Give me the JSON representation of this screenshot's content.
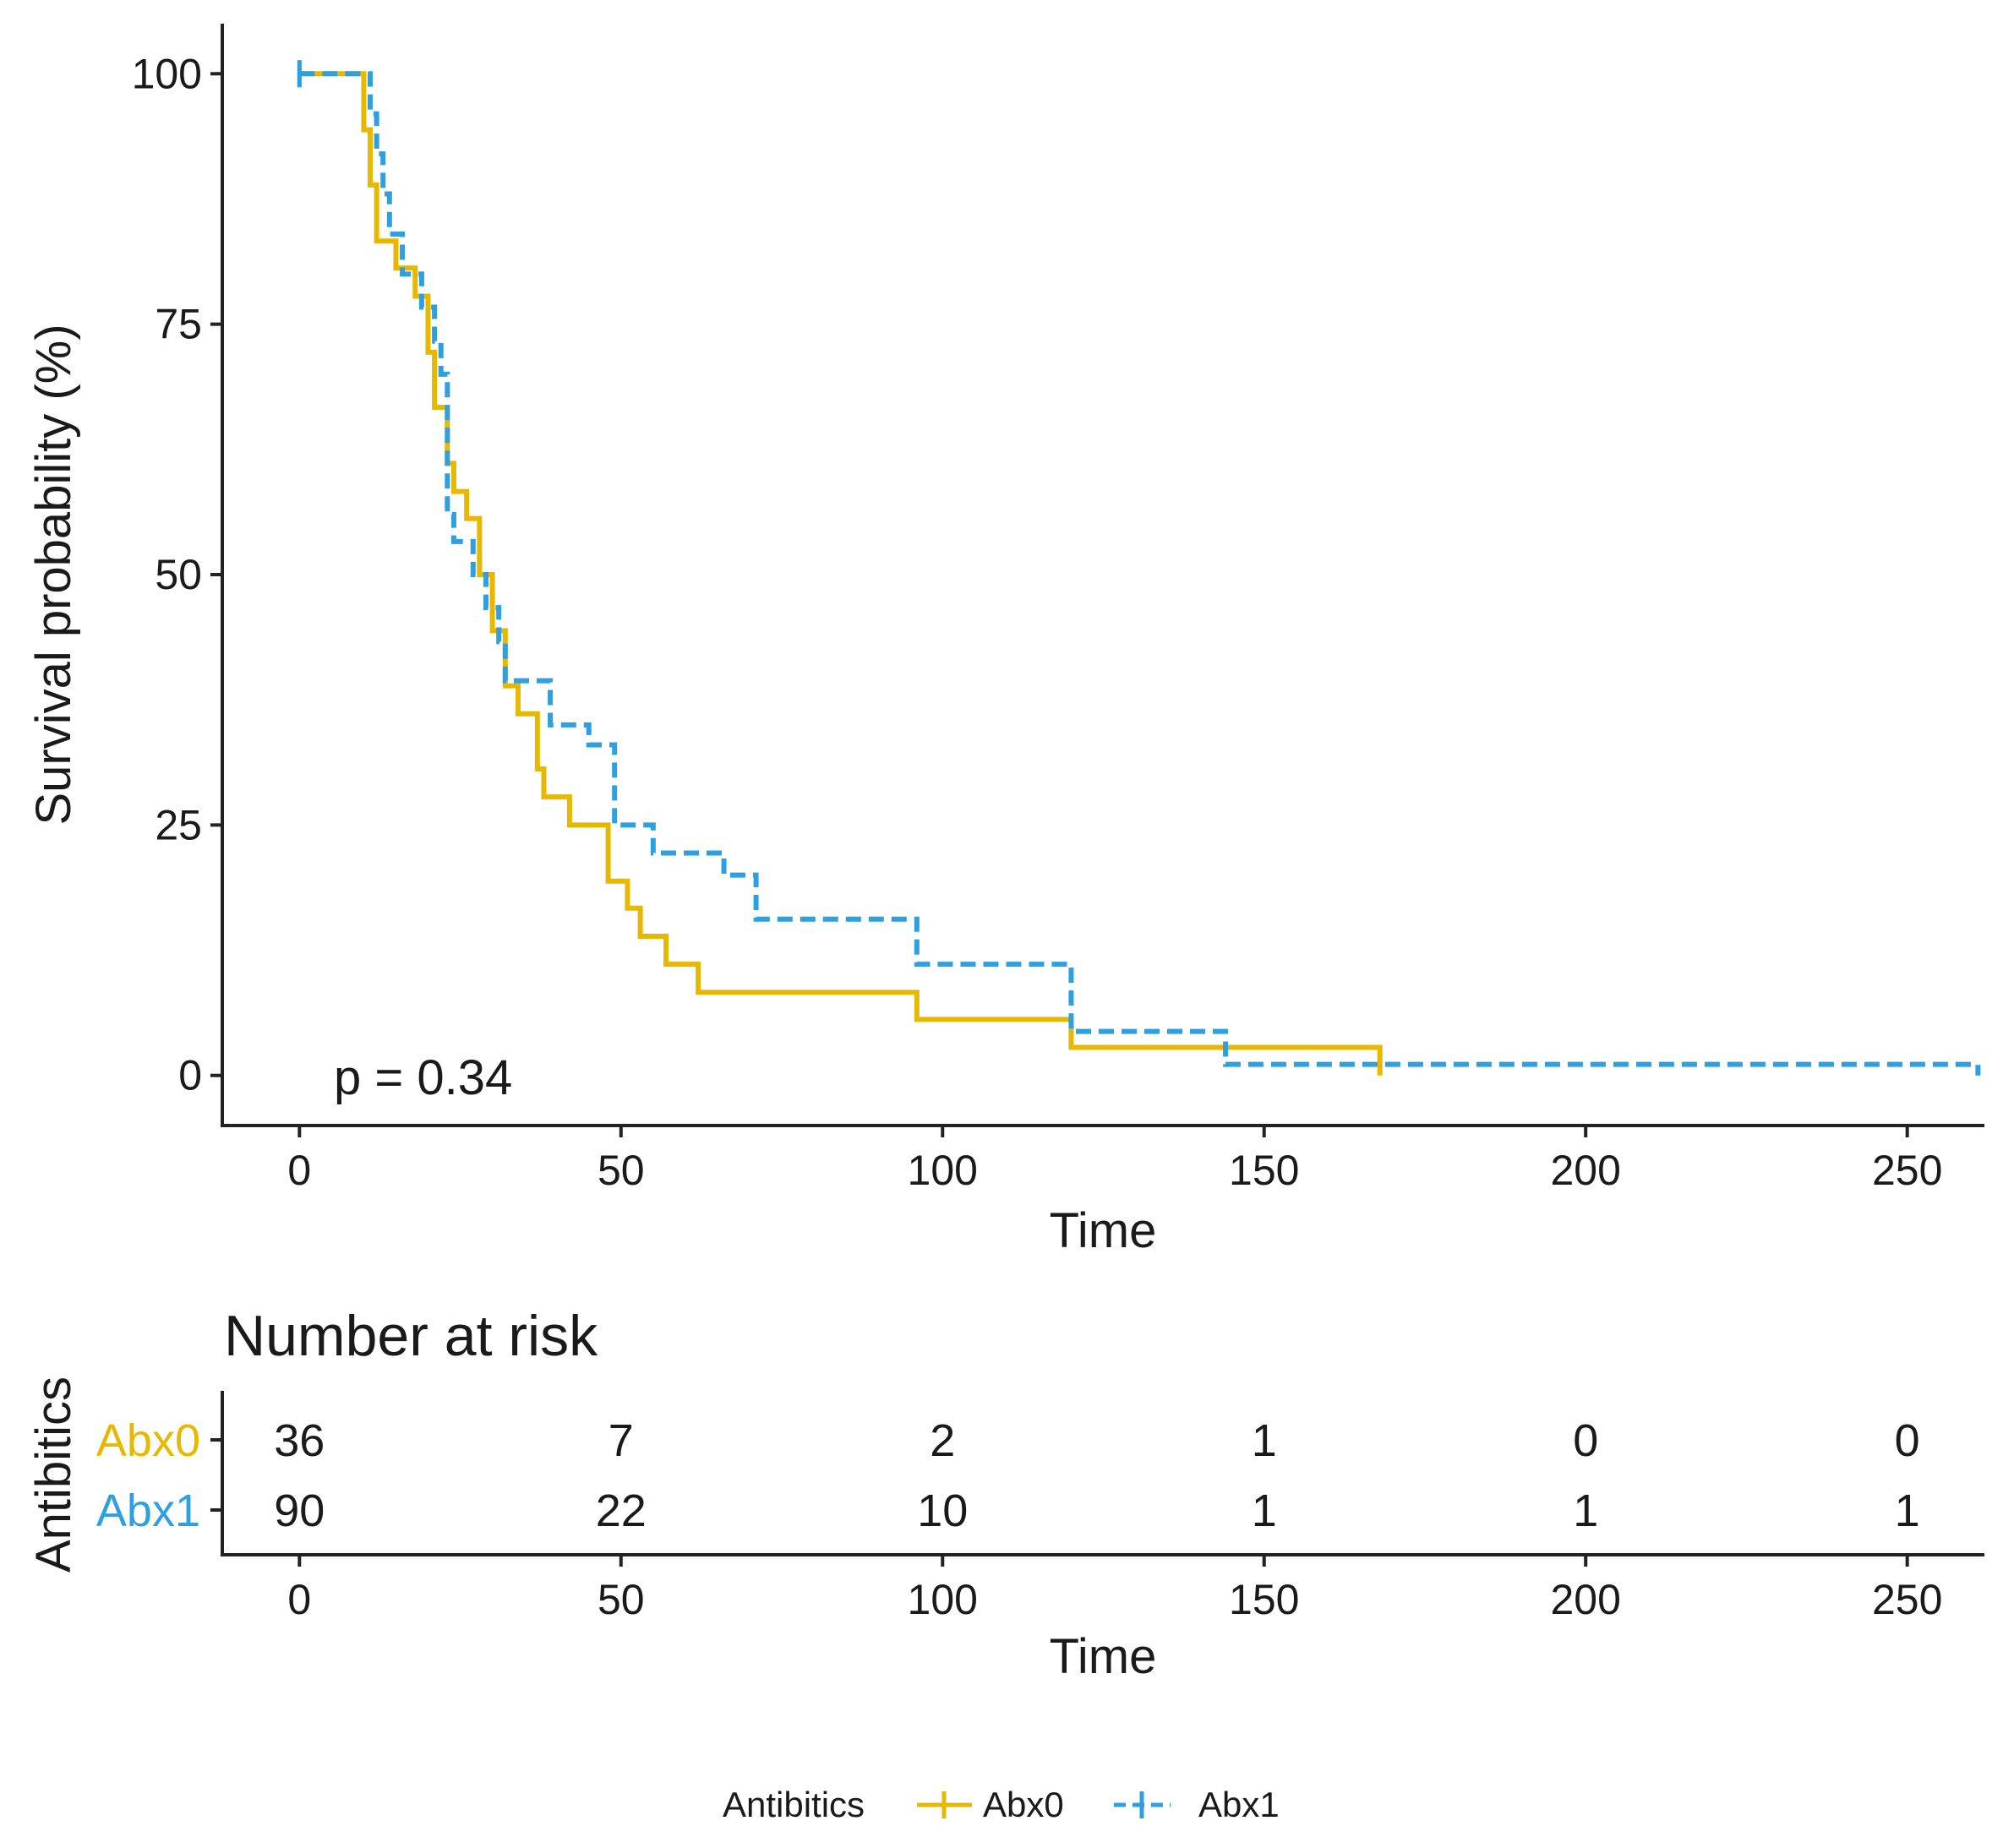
{
  "colors": {
    "abx0": "#E7B800",
    "abx1": "#2E9FDF"
  },
  "chart_data": [
    {
      "type": "line",
      "subtype": "kaplan-meier",
      "xlabel": "Time",
      "ylabel": "Survival probability (%)",
      "xlim": [
        -12,
        262
      ],
      "ylim": [
        -5,
        105
      ],
      "xticks": [
        0,
        50,
        100,
        150,
        200,
        250
      ],
      "yticks": [
        0,
        25,
        50,
        75,
        100
      ],
      "annotation": "p = 0.34",
      "series": [
        {
          "name": "Abx0",
          "color": "#E7B800",
          "style": "solid",
          "steps": [
            [
              0,
              100
            ],
            [
              9,
              100
            ],
            [
              10,
              94.4
            ],
            [
              11,
              88.9
            ],
            [
              12,
              83.3
            ],
            [
              15,
              80.6
            ],
            [
              18,
              77.8
            ],
            [
              20,
              72.2
            ],
            [
              21,
              66.7
            ],
            [
              23,
              61.1
            ],
            [
              24,
              58.3
            ],
            [
              26,
              55.6
            ],
            [
              28,
              50
            ],
            [
              30,
              44.4
            ],
            [
              32,
              38.9
            ],
            [
              34,
              36.1
            ],
            [
              37,
              30.6
            ],
            [
              38,
              27.8
            ],
            [
              42,
              25
            ],
            [
              48,
              19.4
            ],
            [
              51,
              16.7
            ],
            [
              53,
              13.9
            ],
            [
              57,
              11.1
            ],
            [
              62,
              8.3
            ],
            [
              96,
              5.6
            ],
            [
              120,
              2.8
            ],
            [
              168,
              2.8
            ]
          ],
          "end_x": 168,
          "end_y": 0
        },
        {
          "name": "Abx1",
          "color": "#2E9FDF",
          "style": "dashed",
          "steps": [
            [
              0,
              100
            ],
            [
              10,
              100
            ],
            [
              11,
              96
            ],
            [
              12,
              92
            ],
            [
              13,
              88
            ],
            [
              14,
              84
            ],
            [
              16,
              80
            ],
            [
              19,
              76.7
            ],
            [
              21,
              73.3
            ],
            [
              22,
              70
            ],
            [
              23,
              56
            ],
            [
              24,
              53.3
            ],
            [
              27,
              50
            ],
            [
              29,
              46.7
            ],
            [
              31,
              43.3
            ],
            [
              32,
              39.4
            ],
            [
              39,
              35
            ],
            [
              45,
              33
            ],
            [
              49,
              25
            ],
            [
              55,
              22.2
            ],
            [
              66,
              20
            ],
            [
              71,
              15.6
            ],
            [
              96,
              11.1
            ],
            [
              120,
              4.4
            ],
            [
              144,
              1.1
            ],
            [
              261,
              1.1
            ]
          ],
          "end_x": 261,
          "end_y": 0
        }
      ]
    },
    {
      "type": "table",
      "title": "Number at risk",
      "xlabel": "Time",
      "ylabel": "Antibitics",
      "xlim": [
        -12,
        262
      ],
      "xticks": [
        0,
        50,
        100,
        150,
        200,
        250
      ],
      "rows": [
        {
          "name": "Abx0",
          "color": "#E7B800",
          "values": [
            36,
            7,
            2,
            1,
            0,
            0
          ]
        },
        {
          "name": "Abx1",
          "color": "#2E9FDF",
          "values": [
            90,
            22,
            10,
            1,
            1,
            1
          ]
        }
      ]
    }
  ],
  "legend": {
    "title": "Antibitics",
    "items": [
      {
        "label": "Abx0",
        "color": "#E7B800"
      },
      {
        "label": "Abx1",
        "color": "#2E9FDF"
      }
    ]
  }
}
